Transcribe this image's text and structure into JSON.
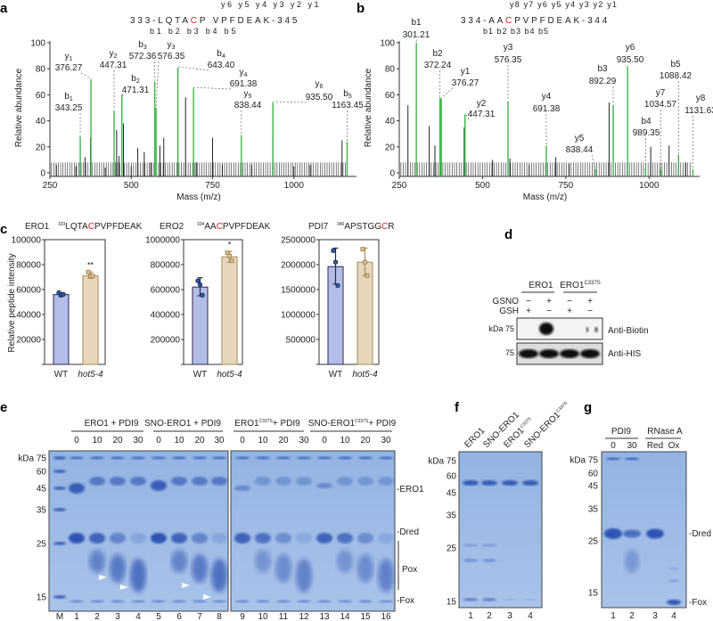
{
  "panels": {
    "a": "a",
    "b": "b",
    "c": "c",
    "d": "d",
    "e": "e",
    "f": "f",
    "g": "g"
  },
  "spectrum_a": {
    "sequence": {
      "prefix": "333-LQTA",
      "cys": "C",
      "suffix": "P VPFDEAK-345"
    },
    "y_ions": "y6 y5 y4 y3 y2 y1",
    "b_ions": "b1 b2 b3 b4 b5",
    "ylabel": "Relative abundance",
    "xlabel": "Mass (m/z)",
    "yticks": [
      "0",
      "20",
      "40",
      "60",
      "80",
      "100"
    ],
    "xticks": [
      "250",
      "500",
      "750",
      "1000"
    ],
    "labeled_peaks": [
      {
        "ion": "b1",
        "mz": "343.25",
        "i": 28
      },
      {
        "ion": "y1",
        "mz": "376.27",
        "i": 72
      },
      {
        "ion": "y2",
        "mz": "447.31",
        "i": 48
      },
      {
        "ion": "b2",
        "mz": "471.31",
        "i": 60
      },
      {
        "ion": "b3",
        "mz": "572.36",
        "i": 70
      },
      {
        "ion": "y3",
        "mz": "576.35",
        "i": 50
      },
      {
        "ion": "b4",
        "mz": "643.40",
        "i": 81
      },
      {
        "ion": "y4",
        "mz": "691.38",
        "i": 65
      },
      {
        "ion": "y5",
        "mz": "838.44",
        "i": 29
      },
      {
        "ion": "y6",
        "mz": "935.50",
        "i": 54
      },
      {
        "ion": "b5",
        "mz": "1163.45",
        "i": 24
      }
    ],
    "other_peaks": [
      [
        270,
        6
      ],
      [
        330,
        5
      ],
      [
        358,
        12
      ],
      [
        375,
        27
      ],
      [
        420,
        4
      ],
      [
        455,
        33
      ],
      [
        462,
        13
      ],
      [
        476,
        38
      ],
      [
        500,
        5
      ],
      [
        520,
        19
      ],
      [
        540,
        16
      ],
      [
        560,
        8
      ],
      [
        588,
        21
      ],
      [
        600,
        27
      ],
      [
        643,
        15
      ],
      [
        667,
        58
      ],
      [
        700,
        8
      ],
      [
        750,
        27
      ],
      [
        780,
        6
      ],
      [
        870,
        6
      ],
      [
        935,
        28
      ],
      [
        1000,
        5
      ],
      [
        1050,
        6
      ],
      [
        1148,
        25
      ]
    ]
  },
  "spectrum_b": {
    "sequence": {
      "prefix": "334-AA",
      "cys": "C",
      "suffix": "PVPFDEAK-344"
    },
    "y_ions": "y8 y7 y6 y5 y4 y3 y2 y1",
    "b_ions": "b1 b2 b3 b4 b5",
    "ylabel": "Relative abundance",
    "xlabel": "Mass (m/z)",
    "yticks": [
      "0",
      "20",
      "40",
      "60",
      "80",
      "100"
    ],
    "xticks": [
      "250",
      "500",
      "750",
      "1000"
    ],
    "labeled_peaks": [
      {
        "ion": "b1",
        "mz": "301.21",
        "i": 100
      },
      {
        "ion": "b2",
        "mz": "372.24",
        "i": 58
      },
      {
        "ion": "y1",
        "mz": "376.27",
        "i": 57
      },
      {
        "ion": "y2",
        "mz": "447.31",
        "i": 45
      },
      {
        "ion": "y3",
        "mz": "576.35",
        "i": 55
      },
      {
        "ion": "y4",
        "mz": "691.38",
        "i": 21
      },
      {
        "ion": "y5",
        "mz": "838.44",
        "i": 3
      },
      {
        "ion": "b3",
        "mz": "892.29",
        "i": 52
      },
      {
        "ion": "y6",
        "mz": "935.50",
        "i": 82
      },
      {
        "ion": "b4",
        "mz": "989.35",
        "i": 4
      },
      {
        "ion": "b5",
        "mz": "1088.42",
        "i": 14
      },
      {
        "ion": "y7",
        "mz": "1034.57",
        "i": 3
      },
      {
        "ion": "y8",
        "mz": "1131.63",
        "i": 3
      }
    ],
    "other_peaks": [
      [
        276,
        52
      ],
      [
        340,
        36
      ],
      [
        357,
        21
      ],
      [
        445,
        35
      ],
      [
        530,
        10
      ],
      [
        582,
        11
      ],
      [
        640,
        6
      ],
      [
        720,
        12
      ],
      [
        760,
        7
      ],
      [
        880,
        54
      ],
      [
        935,
        25
      ],
      [
        1005,
        20
      ],
      [
        1060,
        21
      ],
      [
        1110,
        8
      ]
    ]
  },
  "chart_data": [
    {
      "type": "bar",
      "title": "ERO1",
      "peptide_pos": "333",
      "peptide_pre": "LQTA",
      "peptide_cys": "C",
      "peptide_post": "PVPFDEAK",
      "ylabel": "Relative peptide intensity",
      "ylim": [
        0,
        100000
      ],
      "yticks": [
        "20000",
        "40000",
        "60000",
        "80000",
        "100000"
      ],
      "ytick_values": [
        20000,
        40000,
        60000,
        80000,
        100000
      ],
      "categories": [
        "WT",
        "hot5-4"
      ],
      "values": [
        56000,
        71000
      ],
      "errors": [
        [
          54500,
          57500
        ],
        [
          69000,
          74000
        ]
      ],
      "points": [
        [
          57500,
          55500,
          56200
        ],
        [
          74000,
          70500,
          71000
        ]
      ],
      "significance": "**"
    },
    {
      "type": "bar",
      "title": "ERO2",
      "peptide_pos": "334",
      "peptide_pre": "AA",
      "peptide_cys": "C",
      "peptide_post": "PVPFDEAK",
      "ylim": [
        0,
        1000000
      ],
      "yticks": [
        "200000",
        "400000",
        "600000",
        "800000",
        "1000000"
      ],
      "ytick_values": [
        200000,
        400000,
        600000,
        800000,
        1000000
      ],
      "categories": [
        "WT",
        "hot5-4"
      ],
      "values": [
        620000,
        862000
      ],
      "errors": [
        [
          550000,
          695000
        ],
        [
          820000,
          905000
        ]
      ],
      "points": [
        [
          670000,
          640000,
          555000
        ],
        [
          895000,
          870000,
          830000
        ]
      ],
      "significance": "*"
    },
    {
      "type": "bar",
      "title": "PDI7",
      "peptide_pos": "340",
      "peptide_pre": "APSTGG",
      "peptide_cys": "C",
      "peptide_post": "R",
      "ylim": [
        0,
        2500000
      ],
      "yticks": [
        "500000",
        "1000000",
        "1500000",
        "2000000",
        "2500000"
      ],
      "ytick_values": [
        500000,
        1000000,
        1500000,
        2000000,
        2500000
      ],
      "categories": [
        "WT",
        "hot5-4"
      ],
      "values": [
        1960000,
        2050000
      ],
      "errors": [
        [
          1610000,
          2330000
        ],
        [
          1780000,
          2330000
        ]
      ],
      "points": [
        [
          2280000,
          2050000,
          1580000
        ],
        [
          2310000,
          2050000,
          1780000
        ]
      ],
      "significance": ""
    }
  ],
  "colors": {
    "wt": "#b3bde8",
    "mut": "#e6d7bc",
    "wt_edge": "#2b2b4a",
    "mut_edge": "#a88a55",
    "green": "#3cb54a",
    "cys_red": "#e02020",
    "gel": "#8fb1e0",
    "band": "#2a4fb0"
  },
  "blot_d": {
    "groups": [
      "ERO1",
      "ERO1"
    ],
    "group2_sup": "C337S",
    "row_labels": [
      "GSNO",
      "GSH"
    ],
    "gsno": [
      "−",
      "+",
      "−",
      "+"
    ],
    "gsh": [
      "+",
      "−",
      "+",
      "−"
    ],
    "kda": "kDa 75",
    "kda2": "75",
    "antibodies": [
      "Anti-Biotin",
      "Anti-HIS"
    ]
  },
  "gel_e": {
    "groups": [
      "ERO1 + PDI9",
      "SNO-ERO1 + PDI9",
      "ERO1",
      "+ PDI9",
      "SNO-ERO1",
      "+ PDI9"
    ],
    "sup": "C337S",
    "times": [
      "0",
      "10",
      "20",
      "30",
      "0",
      "10",
      "20",
      "30",
      "0",
      "10",
      "20",
      "30",
      "0",
      "10",
      "20",
      "30"
    ],
    "markers": [
      "kDa 75",
      "60",
      "45",
      "35",
      "25",
      "15"
    ],
    "lanes": [
      "M",
      "1",
      "2",
      "3",
      "4",
      "5",
      "6",
      "7",
      "8",
      "9",
      "10",
      "11",
      "12",
      "13",
      "14",
      "15",
      "16"
    ],
    "right_labels": [
      "-ERO1",
      "-Dred",
      "Pox",
      "-Fox"
    ]
  },
  "gel_f": {
    "lane_titles": [
      "ERO1",
      "SNO-ERO1",
      "ERO1",
      "SNO-ERO1"
    ],
    "sup": "C337S",
    "markers": [
      "kDa 75",
      "60",
      "45",
      "35",
      "25",
      "15"
    ],
    "lanes": [
      "1",
      "2",
      "3",
      "4"
    ]
  },
  "gel_g": {
    "groups": [
      "PDI9",
      "RNase A"
    ],
    "sub": [
      "0",
      "30",
      "Red",
      "Ox"
    ],
    "markers": [
      "kDa 75",
      "60",
      "45",
      "35",
      "25",
      "15"
    ],
    "lanes": [
      "1",
      "2",
      "3",
      "4"
    ],
    "right_labels": [
      "-Dred",
      "-Fox"
    ]
  }
}
